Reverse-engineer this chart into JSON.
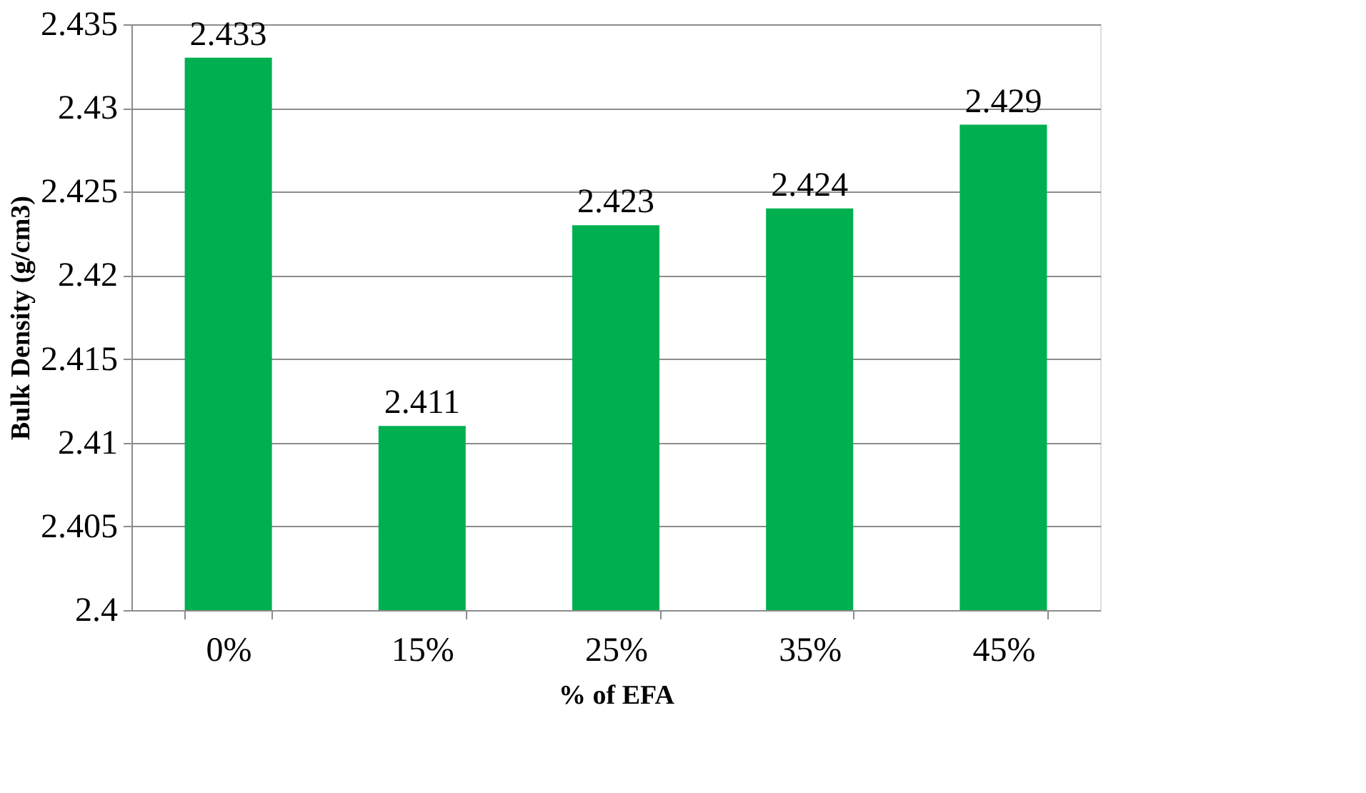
{
  "chart_data": {
    "type": "bar",
    "xlabel": "% of EFA",
    "ylabel": "Bulk Density (g/cm3)",
    "categories": [
      "0%",
      "15%",
      "25%",
      "35%",
      "45%"
    ],
    "values": [
      2.433,
      2.411,
      2.423,
      2.424,
      2.429
    ],
    "color": "#00b050",
    "ylim": [
      2.4,
      2.435
    ],
    "yticks": [
      2.4,
      2.405,
      2.41,
      2.415,
      2.42,
      2.425,
      2.43,
      2.435
    ],
    "grid": "y",
    "data_labels": true
  }
}
